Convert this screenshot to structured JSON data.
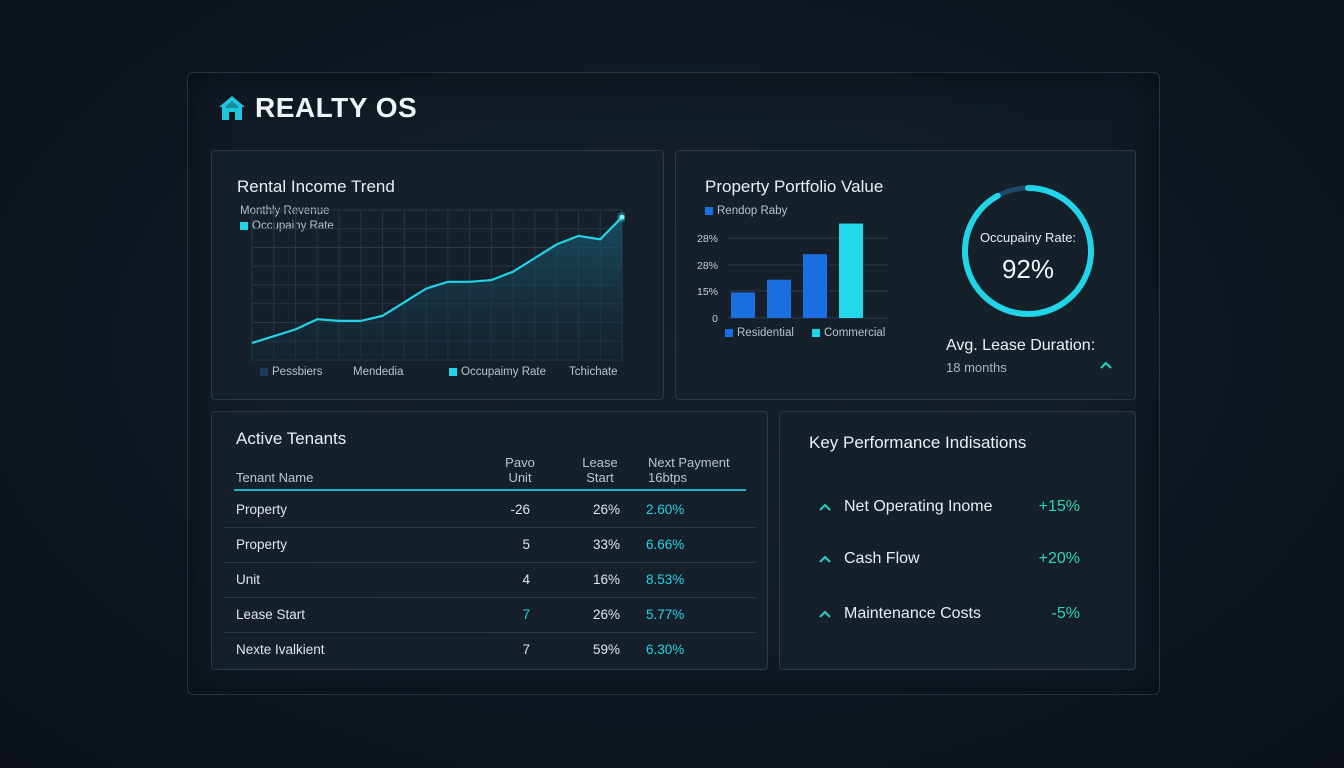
{
  "app": {
    "title": "REALTY OS",
    "logo_icon": "home-icon"
  },
  "colors": {
    "accent": "#21d4e8",
    "bar_blue": "#1b6fe0",
    "bar_cyan": "#22d8ea",
    "positive": "#2ad6b9"
  },
  "income_panel": {
    "title": "Rental Income Trend",
    "legend": [
      "Monthly Revenue",
      "Occupainy Rate"
    ],
    "x_labels": [
      "Pessbiers",
      "Mendedia",
      "Occupaimy Rate",
      "Tchichate"
    ]
  },
  "portfolio_panel": {
    "title": "Property Portfolio Value",
    "legend_top": "Rendop Raby",
    "legend_bottom": [
      "Residential",
      "Commercial"
    ]
  },
  "occupancy": {
    "label": "Occupainy Rate:",
    "value": "92%",
    "fraction": 0.92
  },
  "lease": {
    "label": "Avg. Lease Duration:",
    "value": "18 months"
  },
  "tenants": {
    "title": "Active Tenants",
    "headers": [
      {
        "line1": "",
        "line2": "Tenant Name"
      },
      {
        "line1": "Pavo",
        "line2": "Unit"
      },
      {
        "line1": "Lease",
        "line2": "Start"
      },
      {
        "line1": "Next Payment",
        "line2": "16btps"
      }
    ],
    "rows": [
      {
        "name": "Property",
        "unit": "-26",
        "start": "26%",
        "payment": "2.60%"
      },
      {
        "name": "Property",
        "unit": "5",
        "start": "33%",
        "payment": "6.66%"
      },
      {
        "name": "Unit",
        "unit": "4",
        "start": "16%",
        "payment": "8.53%"
      },
      {
        "name": "Lease Start",
        "unit": "7",
        "start": "26%",
        "payment": "5.77%"
      },
      {
        "name": "Nexte Ivalkient",
        "unit": "7",
        "start": "59%",
        "payment": "6.30%"
      }
    ]
  },
  "kpi": {
    "title": "Key Performance Indisations",
    "items": [
      {
        "label": "Net Operating Inome",
        "value": "+15%",
        "icon": "chevron-up-icon"
      },
      {
        "label": "Cash Flow",
        "value": "+20%",
        "icon": "chevron-up-icon"
      },
      {
        "label": "Maintenance Costs",
        "value": "-5%",
        "icon": "chevron-up-icon"
      }
    ]
  },
  "chart_data": [
    {
      "type": "area",
      "title": "Rental Income Trend",
      "series": [
        {
          "name": "Monthly Revenue",
          "values": [
            10,
            14,
            18,
            24,
            23,
            23,
            26,
            34,
            42,
            46,
            46,
            47,
            52,
            60,
            68,
            73,
            71,
            84
          ]
        }
      ],
      "ylim": [
        0,
        100
      ],
      "grid": true,
      "legend": "top-left"
    },
    {
      "type": "bar",
      "title": "Property Portfolio Value",
      "y_ticks": [
        "0",
        "15%",
        "28%",
        "28%"
      ],
      "values": [
        10,
        15,
        25,
        37
      ],
      "series_colors": [
        "residential",
        "residential",
        "residential",
        "commercial"
      ],
      "ylim": [
        0,
        38
      ],
      "grid": true,
      "legend": "bottom"
    }
  ]
}
